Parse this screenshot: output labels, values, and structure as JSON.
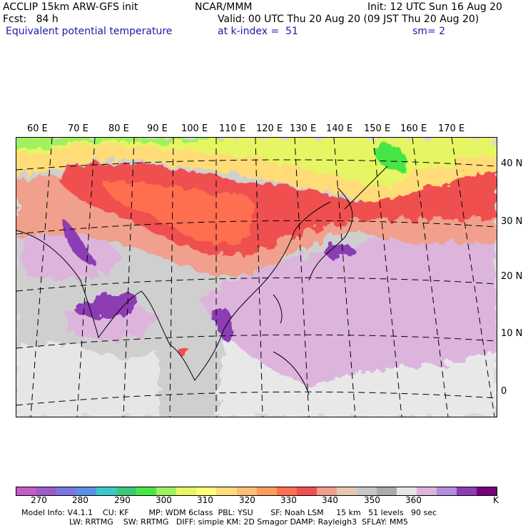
{
  "header": {
    "model_title": "ACCLIP 15km ARW-GFS init",
    "org": "NCAR/MMM",
    "init": "Init: 12 UTC Sun 16 Aug 20",
    "fcst": "Fcst:   84 h",
    "valid": "Valid: 00 UTC Thu 20 Aug 20 (09 JST Thu 20 Aug 20)",
    "field": "Equivalent potential temperature",
    "level": "at k-index =  51",
    "smooth": "sm= 2"
  },
  "map": {
    "lon_labels": [
      "60 E",
      "70 E",
      "80 E",
      "90 E",
      "100 E",
      "110 E",
      "120 E",
      "130 E",
      "140 E",
      "150 E",
      "160 E",
      "170 E"
    ],
    "lat_labels": [
      "40 N",
      "30 N",
      "20 N",
      "10 N",
      "0"
    ]
  },
  "colorbar": {
    "colors": [
      "#c85ac8",
      "#9f5ac8",
      "#7a78e0",
      "#5a90e6",
      "#3cc8c8",
      "#3cc878",
      "#46e646",
      "#a0f060",
      "#e6f564",
      "#ffff78",
      "#ffdc78",
      "#ffbe78",
      "#ff9b5a",
      "#ff6e50",
      "#f05050",
      "#f0a08c",
      "#e8c8b4",
      "#c8c8c8",
      "#aaaaaa",
      "#e6e6e6",
      "#dcb4dc",
      "#b48cdc",
      "#8c3cb4",
      "#780078"
    ],
    "labels": [
      "270",
      "280",
      "290",
      "300",
      "310",
      "320",
      "330",
      "340",
      "350",
      "360",
      "K"
    ]
  },
  "footer": {
    "line1": "Model Info: V4.1.1    CU: KF        MP: WDM 6class  PBL: YSU       SF: Noah LSM     15 km   51 levels   90 sec",
    "line2": "LW: RRTMG    SW: RRTMG   DIFF: simple KM: 2D Smagor DAMP: Rayleigh3  SFLAY: MM5"
  }
}
